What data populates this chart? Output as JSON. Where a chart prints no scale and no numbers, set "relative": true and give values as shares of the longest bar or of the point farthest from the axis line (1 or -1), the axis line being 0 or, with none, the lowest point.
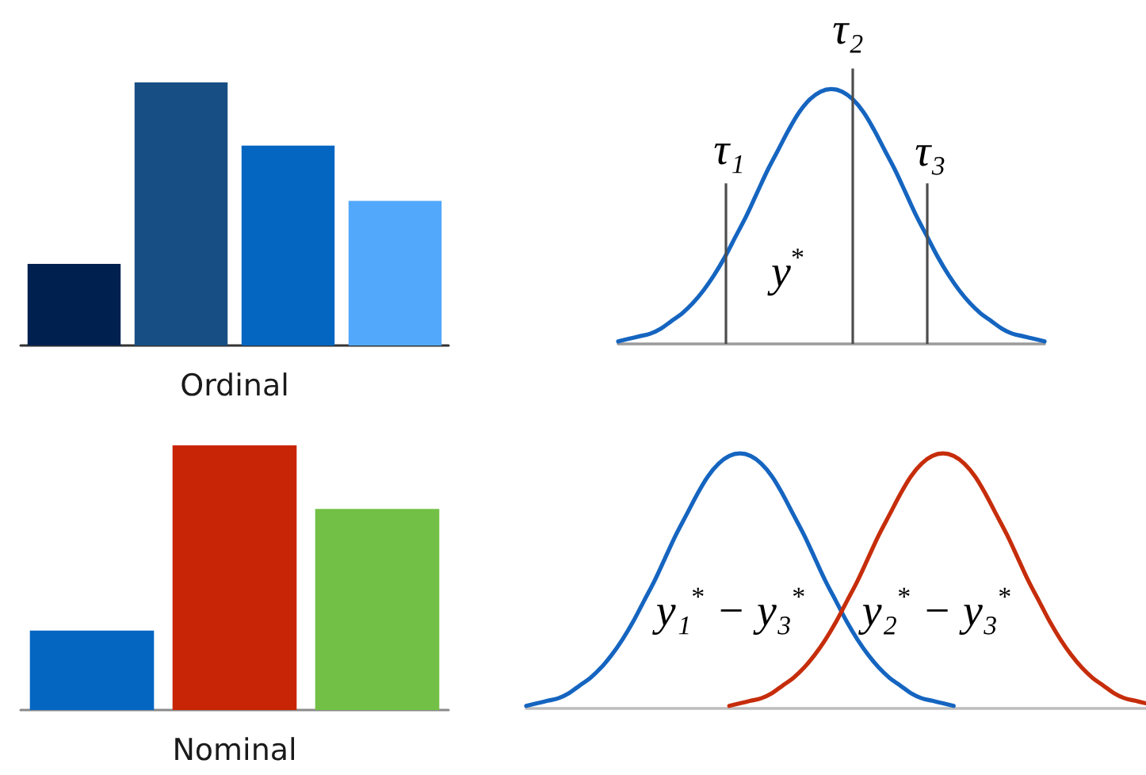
{
  "chart_data": [
    {
      "type": "bar",
      "xlabel": "Ordinal",
      "categories": [
        null,
        null,
        null,
        null
      ],
      "values": [
        0.31,
        1,
        0.76,
        0.55
      ],
      "colors": [
        "#002050",
        "#174f84",
        "#0566c2",
        "#52a8fb"
      ],
      "relative": true,
      "tick_labels": false
    },
    {
      "type": "line",
      "categories": [
        null,
        null,
        null,
        null,
        null,
        null,
        null,
        null,
        null,
        null,
        null,
        null,
        null,
        null,
        null,
        null,
        null,
        null,
        null,
        null,
        null,
        null,
        null,
        null,
        null,
        null,
        null,
        null,
        null,
        null,
        null,
        null,
        null,
        null,
        null,
        null,
        null,
        null,
        null,
        null,
        null
      ],
      "series": [
        {
          "color": "#1565c0",
          "values": [
            0.01,
            0.02,
            0.03,
            0.04,
            0.06,
            0.09,
            0.12,
            0.16,
            0.21,
            0.27,
            0.34,
            0.42,
            0.5,
            0.59,
            0.68,
            0.76,
            0.84,
            0.91,
            0.96,
            0.99,
            1,
            0.99,
            0.96,
            0.91,
            0.84,
            0.76,
            0.68,
            0.59,
            0.5,
            0.42,
            0.34,
            0.27,
            0.21,
            0.16,
            0.12,
            0.09,
            0.06,
            0.04,
            0.03,
            0.02,
            0.01
          ]
        }
      ],
      "relative": true,
      "marker": "none",
      "tick_labels": false,
      "annotations": [
        "τ₁",
        "τ₂",
        "τ₃",
        "y$^{*}$"
      ]
    },
    {
      "type": "bar",
      "xlabel": "Nominal",
      "categories": [
        null,
        null,
        null
      ],
      "values": [
        0.3,
        1,
        0.76
      ],
      "colors": [
        "#0566c2",
        "#c82506",
        "#72c045"
      ],
      "relative": true,
      "tick_labels": false
    },
    {
      "type": "line",
      "categories": [
        null,
        null,
        null,
        null,
        null,
        null,
        null,
        null,
        null,
        null,
        null,
        null,
        null,
        null,
        null,
        null,
        null,
        null,
        null,
        null,
        null,
        null,
        null,
        null,
        null,
        null,
        null,
        null,
        null,
        null,
        null,
        null,
        null,
        null,
        null,
        null,
        null,
        null,
        null,
        null,
        null,
        null,
        null,
        null,
        null,
        null,
        null,
        null,
        null,
        null,
        null,
        null,
        null,
        null,
        null,
        null,
        null,
        null,
        null
      ],
      "series": [
        {
          "color": "#1565c0",
          "values": [
            0.01,
            0.02,
            0.03,
            0.04,
            0.06,
            0.09,
            0.12,
            0.16,
            0.21,
            0.27,
            0.34,
            0.42,
            0.5,
            0.59,
            0.68,
            0.76,
            0.84,
            0.91,
            0.96,
            0.99,
            1,
            0.99,
            0.96,
            0.91,
            0.84,
            0.76,
            0.68,
            0.59,
            0.5,
            0.42,
            0.34,
            0.27,
            0.21,
            0.16,
            0.12,
            0.09,
            0.06,
            0.04,
            0.03,
            0.02,
            0.01,
            null,
            null,
            null,
            null,
            null,
            null,
            null,
            null,
            null,
            null,
            null,
            null,
            null,
            null,
            null,
            null,
            null,
            null
          ]
        },
        {
          "color": "#c62d0b",
          "values": [
            null,
            null,
            null,
            null,
            null,
            null,
            null,
            null,
            null,
            null,
            null,
            null,
            null,
            null,
            null,
            null,
            null,
            null,
            null,
            0.01,
            0.02,
            0.03,
            0.04,
            0.06,
            0.09,
            0.12,
            0.16,
            0.21,
            0.27,
            0.34,
            0.42,
            0.5,
            0.59,
            0.68,
            0.76,
            0.84,
            0.91,
            0.96,
            0.99,
            1,
            0.99,
            0.96,
            0.91,
            0.84,
            0.76,
            0.68,
            0.59,
            0.5,
            0.42,
            0.34,
            0.27,
            0.21,
            0.16,
            0.12,
            0.09,
            0.06,
            0.04,
            0.03,
            0.02
          ]
        }
      ],
      "relative": true,
      "marker": "none",
      "tick_labels": false,
      "annotations": [
        "y₁$^{*}$ − y₃$^{*}$",
        "y₂$^{*}$ − y₃$^{*}$"
      ]
    }
  ]
}
